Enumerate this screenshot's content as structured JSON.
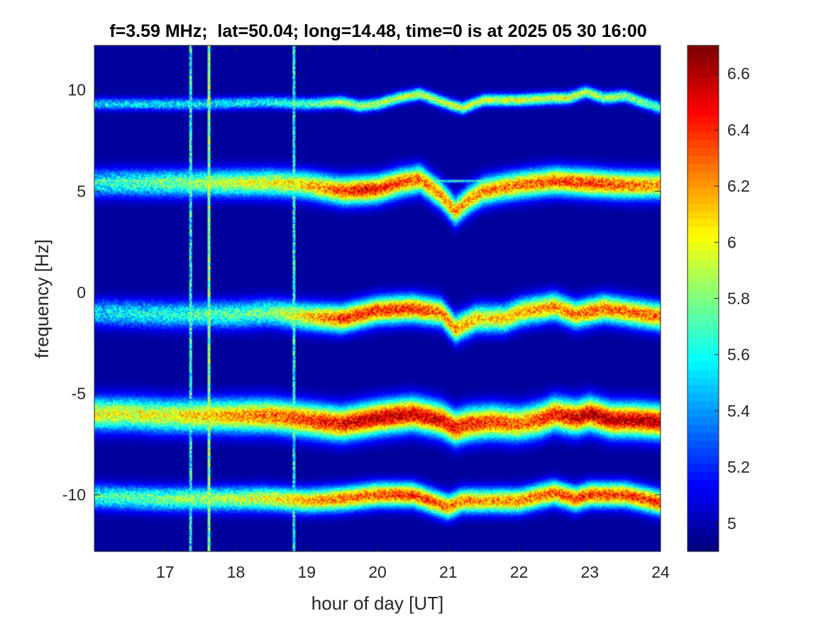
{
  "chart_data": {
    "type": "heatmap",
    "title": "f=3.59 MHz;  lat=50.04; long=14.48, time=0 is at 2025 05 30 16:00",
    "xlabel": "hour of day [UT]",
    "ylabel": "frequency [Hz]",
    "xlim": [
      16,
      24
    ],
    "ylim": [
      -12.8,
      12.2
    ],
    "x_ticks": [
      17,
      18,
      19,
      20,
      21,
      22,
      23,
      24
    ],
    "x_tick_labels": [
      "17",
      "18",
      "19",
      "20",
      "21",
      "22",
      "23",
      "24"
    ],
    "y_ticks": [
      10,
      5,
      0,
      -5,
      -10
    ],
    "y_tick_labels": [
      "10",
      "5",
      "0",
      "-5",
      "-10"
    ],
    "colorbar": {
      "colormap": "jet",
      "range": [
        4.9,
        6.7
      ],
      "ticks": [
        6.6,
        6.4,
        6.2,
        6,
        5.8,
        5.6,
        5.4,
        5.2,
        5
      ],
      "tick_labels": [
        "6.6",
        "6.4",
        "6.2",
        "6",
        "5.8",
        "5.6",
        "5.4",
        "5.2",
        "5"
      ]
    },
    "background_level": 4.95,
    "series": [
      {
        "trace_points": [
          [
            16.0,
            9.3
          ],
          [
            16.5,
            9.3
          ],
          [
            17.0,
            9.3
          ],
          [
            17.5,
            9.3
          ],
          [
            18.0,
            9.35
          ],
          [
            18.5,
            9.4
          ],
          [
            19.0,
            9.3
          ],
          [
            19.5,
            9.4
          ],
          [
            19.75,
            9.2
          ],
          [
            20.0,
            9.3
          ],
          [
            20.3,
            9.6
          ],
          [
            20.6,
            9.8
          ],
          [
            21.0,
            9.3
          ],
          [
            21.2,
            9.1
          ],
          [
            21.5,
            9.5
          ],
          [
            22.0,
            9.5
          ],
          [
            22.5,
            9.6
          ],
          [
            22.7,
            9.6
          ],
          [
            22.95,
            9.9
          ],
          [
            23.2,
            9.6
          ],
          [
            23.5,
            9.7
          ],
          [
            24.0,
            9.1
          ]
        ],
        "intensity": [
          [
            16.0,
            5.5
          ],
          [
            18.5,
            5.6
          ],
          [
            19.5,
            5.9
          ],
          [
            22.5,
            6.0
          ],
          [
            24.0,
            5.8
          ]
        ],
        "spread_hz": 0.2
      },
      {
        "trace_points": [
          [
            16.0,
            5.4
          ],
          [
            18.0,
            5.4
          ],
          [
            18.5,
            5.4
          ],
          [
            19.0,
            5.3
          ],
          [
            19.5,
            5.0
          ],
          [
            20.0,
            5.1
          ],
          [
            20.3,
            5.4
          ],
          [
            20.6,
            5.6
          ],
          [
            20.9,
            4.8
          ],
          [
            21.1,
            4.0
          ],
          [
            21.3,
            4.6
          ],
          [
            21.5,
            5.0
          ],
          [
            21.8,
            5.2
          ],
          [
            22.0,
            5.3
          ],
          [
            22.5,
            5.5
          ],
          [
            23.0,
            5.4
          ],
          [
            23.5,
            5.3
          ],
          [
            24.0,
            5.3
          ]
        ],
        "intensity": [
          [
            16.0,
            5.6
          ],
          [
            19.0,
            6.1
          ],
          [
            19.8,
            6.5
          ],
          [
            20.5,
            6.3
          ],
          [
            21.2,
            6.2
          ],
          [
            23.0,
            6.4
          ],
          [
            24.0,
            6.2
          ]
        ],
        "spread_hz": 0.45
      },
      {
        "trace_points": [
          [
            16.0,
            -1.0
          ],
          [
            17.0,
            -1.1
          ],
          [
            18.0,
            -1.1
          ],
          [
            18.5,
            -1.0
          ],
          [
            19.0,
            -1.2
          ],
          [
            19.5,
            -1.3
          ],
          [
            20.0,
            -0.9
          ],
          [
            20.5,
            -0.8
          ],
          [
            20.9,
            -1.0
          ],
          [
            21.1,
            -1.8
          ],
          [
            21.4,
            -1.3
          ],
          [
            21.8,
            -1.3
          ],
          [
            22.0,
            -1.0
          ],
          [
            22.5,
            -0.7
          ],
          [
            22.8,
            -1.1
          ],
          [
            23.2,
            -0.8
          ],
          [
            23.6,
            -1.0
          ],
          [
            24.0,
            -1.2
          ]
        ],
        "intensity": [
          [
            16.0,
            5.5
          ],
          [
            18.5,
            5.8
          ],
          [
            19.5,
            6.4
          ],
          [
            20.5,
            6.4
          ],
          [
            21.5,
            6.1
          ],
          [
            23.0,
            6.3
          ],
          [
            24.0,
            6.3
          ]
        ],
        "spread_hz": 0.45
      },
      {
        "trace_points": [
          [
            16.0,
            -6.0
          ],
          [
            16.5,
            -6.0
          ],
          [
            17.0,
            -6.1
          ],
          [
            17.5,
            -6.1
          ],
          [
            18.0,
            -6.1
          ],
          [
            18.5,
            -6.1
          ],
          [
            19.0,
            -6.3
          ],
          [
            19.5,
            -6.5
          ],
          [
            20.0,
            -6.2
          ],
          [
            20.5,
            -6.0
          ],
          [
            20.9,
            -6.3
          ],
          [
            21.1,
            -6.7
          ],
          [
            21.3,
            -6.5
          ],
          [
            21.6,
            -6.4
          ],
          [
            22.0,
            -6.5
          ],
          [
            22.3,
            -6.3
          ],
          [
            22.5,
            -6.0
          ],
          [
            22.8,
            -6.2
          ],
          [
            23.0,
            -6.0
          ],
          [
            23.3,
            -6.3
          ],
          [
            23.6,
            -6.3
          ],
          [
            24.0,
            -6.4
          ]
        ],
        "intensity": [
          [
            16.0,
            6.0
          ],
          [
            17.0,
            6.0
          ],
          [
            18.0,
            6.2
          ],
          [
            19.0,
            6.4
          ],
          [
            20.0,
            6.6
          ],
          [
            21.0,
            6.5
          ],
          [
            22.0,
            6.3
          ],
          [
            23.0,
            6.6
          ],
          [
            24.0,
            6.6
          ]
        ],
        "spread_hz": 0.55
      },
      {
        "trace_points": [
          [
            16.0,
            -10.1
          ],
          [
            17.0,
            -10.2
          ],
          [
            18.0,
            -10.2
          ],
          [
            18.5,
            -10.2
          ],
          [
            19.0,
            -10.3
          ],
          [
            19.5,
            -10.2
          ],
          [
            20.0,
            -10.0
          ],
          [
            20.5,
            -10.0
          ],
          [
            21.0,
            -10.6
          ],
          [
            21.2,
            -10.3
          ],
          [
            21.5,
            -10.3
          ],
          [
            22.0,
            -10.3
          ],
          [
            22.5,
            -9.9
          ],
          [
            22.8,
            -10.2
          ],
          [
            23.0,
            -10.0
          ],
          [
            23.5,
            -10.0
          ],
          [
            24.0,
            -10.4
          ]
        ],
        "intensity": [
          [
            16.0,
            5.7
          ],
          [
            18.0,
            5.9
          ],
          [
            19.5,
            6.3
          ],
          [
            20.5,
            6.4
          ],
          [
            21.5,
            6.2
          ],
          [
            23.0,
            6.4
          ],
          [
            24.0,
            6.4
          ]
        ],
        "spread_hz": 0.4
      },
      {
        "trace_points": [
          [
            16.0,
            5.5
          ],
          [
            24.0,
            5.5
          ]
        ],
        "intensity": [
          [
            16.0,
            5.7
          ],
          [
            24.0,
            5.7
          ]
        ],
        "spread_hz": 0.05
      }
    ],
    "vertical_streaks": [
      {
        "x": 17.36,
        "level": 5.6
      },
      {
        "x": 17.62,
        "level": 5.8
      },
      {
        "x": 18.82,
        "level": 5.6
      }
    ]
  }
}
